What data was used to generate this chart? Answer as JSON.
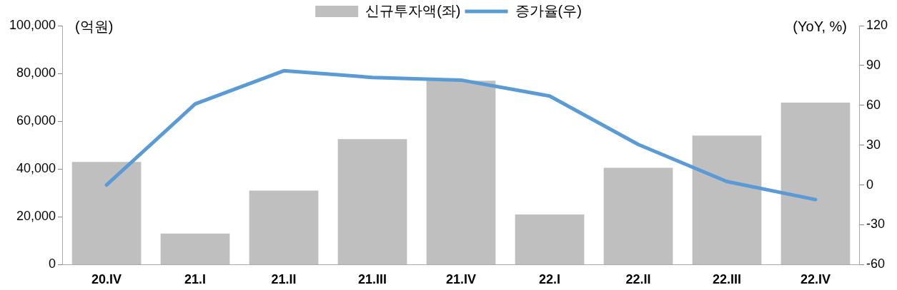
{
  "chart_data": {
    "type": "bar",
    "ylabel": "(억원)",
    "y2label": "(YoY, %)",
    "legend": "top",
    "categories": [
      "20.IV",
      "21.I",
      "21.II",
      "21.III",
      "21.IV",
      "22.I",
      "22.II",
      "22.III",
      "22.IV"
    ],
    "series": [
      {
        "name": "신규투자액(좌)",
        "color": "#bfbfbf",
        "values": [
          43000,
          13000,
          31000,
          52500,
          77000,
          21000,
          40500,
          54000,
          67800
        ]
      },
      {
        "name": "증가율(우)",
        "type": "line",
        "axis": "y2",
        "color": "#5b9bd5",
        "values": [
          0,
          61,
          86,
          81,
          79,
          67,
          30.5,
          2.6,
          -11
        ]
      }
    ],
    "ylim": [
      0,
      100000
    ],
    "yticks": [
      {
        "value": 0,
        "label": "0"
      },
      {
        "value": 20000,
        "label": "20,000"
      },
      {
        "value": 40000,
        "label": "40,000"
      },
      {
        "value": 60000,
        "label": "60,000"
      },
      {
        "value": 80000,
        "label": "80,000"
      },
      {
        "value": 100000,
        "label": "100,000"
      }
    ],
    "y2lim": [
      -60,
      120
    ],
    "y2ticks": [
      -60,
      -30,
      0,
      30,
      60,
      90,
      120
    ],
    "marker": "none"
  }
}
